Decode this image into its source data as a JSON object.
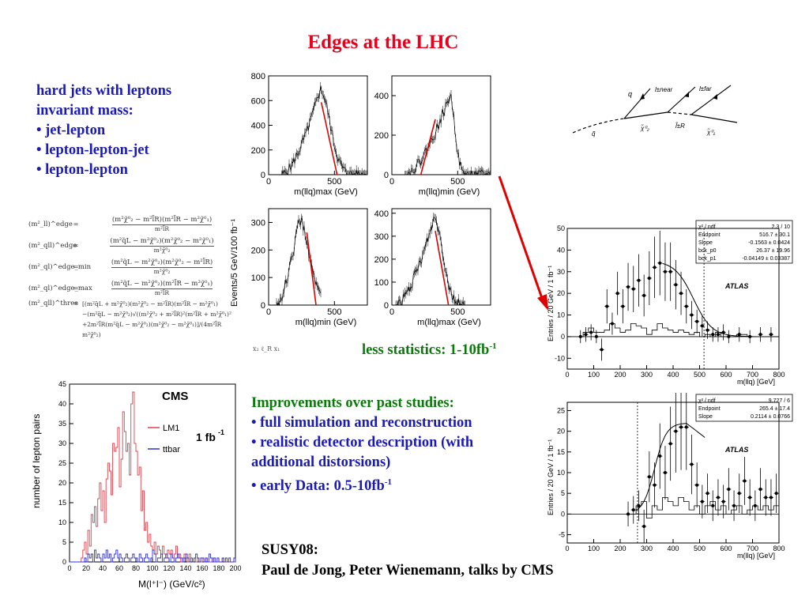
{
  "title": "Edges at the LHC",
  "intro": {
    "heading": [
      "hard jets with leptons",
      "invariant mass:"
    ],
    "bullets": [
      "• jet-lepton",
      "• lepton-lepton-jet",
      "• lepton-lepton"
    ]
  },
  "formulas": [
    {
      "lhs": "(m²_ll)^edge",
      "num": "(m²χ̃⁰₂ − m²l̃R)(m²l̃R − m²χ̃⁰₁)",
      "den": "m²l̃R"
    },
    {
      "lhs": "(m²_qll)^edge",
      "num": "(m²q̃L − m²χ̃⁰₂)(m²χ̃⁰₂ − m²χ̃⁰₁)",
      "den": "m²χ̃⁰₂"
    },
    {
      "lhs": "(m²_ql)^edge_min",
      "num": "(m²q̃L − m²χ̃⁰₂)(m²χ̃⁰₂ − m²l̃R)",
      "den": "m²χ̃⁰₂"
    },
    {
      "lhs": "(m²_ql)^edge_max",
      "num": "(m²q̃L − m²χ̃⁰₂)(m²l̃R − m²χ̃⁰₁)",
      "den": "m²l̃R"
    }
  ],
  "formula_thres": {
    "lhs": "(m²_qll)^thres",
    "lines": [
      "[(m²q̃L + m²χ̃⁰₂)(m²χ̃⁰₂ − m²l̃R)(m²l̃R − m²χ̃⁰₁)",
      "−(m²q̃L − m²χ̃⁰₂)√((m²χ̃⁰₂ + m²l̃R)²(m²l̃R + m²χ̃⁰₁)²",
      "+2m²l̃R(m²q̃L − m²χ̃⁰₂)(m²χ̃⁰₂ − m²χ̃⁰₁)]/(4m²l̃R m²χ̃⁰₂)"
    ]
  },
  "formula_footnote": "x₂   ℓ_R   x₁",
  "less_statistics": {
    "text": "less statistics: 1-10fb",
    "sup": "-1"
  },
  "improvements": {
    "heading": "Improvements over past studies:",
    "bullets": [
      "• full simulation and reconstruction",
      "• realistic detector description (with additional distorsions)"
    ],
    "last_bullet": {
      "text": "• early Data: 0.5-10fb",
      "sup": "-1"
    }
  },
  "reference": [
    "SUSY08:",
    "Paul de Jong, Peter Wienemann, talks by CMS"
  ],
  "feynman": {
    "labels": [
      "q",
      "l±near",
      "l±far",
      "q̃",
      "χ̃⁰₂",
      "l̃±R",
      "χ̃⁰₁"
    ]
  },
  "cms_plot": {
    "title": "CMS",
    "lumi": "1 fb",
    "lumi_sup": "-1",
    "ylabel": "number of lepton pairs",
    "xlabel": "M(l⁺l⁻) (GeV/c²)",
    "legend": [
      "LM1",
      "ttbar"
    ],
    "colors": {
      "LM1": "#e0404a",
      "ttbar": "#3030d0"
    }
  },
  "llq_grid": {
    "ylabel": "Events/5 GeV/100 fb⁻¹",
    "xlabels": [
      "m(llq)max (GeV)",
      "m(llq)min (GeV)",
      "m(llq)min (GeV)",
      "m(llq)max (GeV)"
    ]
  },
  "atlas_top": {
    "label": "ATLAS",
    "ylabel": "Entries / 20 GeV / 1 fb⁻¹",
    "xlabel": "m(llq) [GeV]",
    "stats": [
      [
        "χ² / ndf",
        "2.3 / 10"
      ],
      [
        "Endpoint",
        "516.7 ± 30.1"
      ],
      [
        "Slope",
        "-0.1563 ± 0.0424"
      ],
      [
        "bck_p0",
        "26.37 ± 19.96"
      ],
      [
        "bck_p1",
        "-0.04149 ± 0.03387"
      ]
    ]
  },
  "atlas_bottom": {
    "label": "ATLAS",
    "ylabel": "Entries / 20 GeV / 1 fb⁻¹",
    "xlabel": "m(llq) [GeV]",
    "stats": [
      [
        "χ² / ndf",
        "9.727 / 6"
      ],
      [
        "Endpoint",
        "265.4 ± 17.4"
      ],
      [
        "Slope",
        "0.2114 ± 0.0766"
      ]
    ]
  },
  "chart_data": [
    {
      "type": "bar",
      "title": "CMS",
      "xlabel": "M(l⁺l⁻) (GeV/c²)",
      "ylabel": "number of lepton pairs",
      "xlim": [
        0,
        200
      ],
      "ylim": [
        0,
        45
      ],
      "x_ticks": [
        0,
        20,
        40,
        60,
        80,
        100,
        120,
        140,
        160,
        180,
        200
      ],
      "y_ticks": [
        0,
        5,
        10,
        15,
        20,
        25,
        30,
        35,
        40,
        45
      ],
      "bin_width": 2,
      "series": [
        {
          "name": "LM1",
          "values": [
            0,
            0,
            0,
            0,
            0,
            0,
            0,
            1,
            3,
            5,
            2,
            8,
            4,
            12,
            10,
            14,
            9,
            16,
            20,
            13,
            18,
            10,
            21,
            25,
            23,
            17,
            30,
            28,
            29,
            34,
            19,
            26,
            38,
            33,
            28,
            30,
            22,
            40,
            43,
            30,
            28,
            22,
            24,
            13,
            18,
            8,
            10,
            5,
            7,
            4,
            3,
            5,
            2,
            4,
            3,
            2,
            4,
            2,
            1,
            3,
            2,
            3,
            1,
            2,
            4,
            1,
            2,
            0,
            1,
            2,
            1,
            0,
            2,
            1,
            0,
            1,
            0,
            1,
            0,
            0,
            1,
            0,
            1,
            0,
            0,
            0,
            1,
            0,
            0,
            0,
            0,
            0,
            1,
            0,
            0,
            0,
            0,
            0,
            0,
            0
          ]
        },
        {
          "name": "ttbar",
          "values": [
            0,
            0,
            0,
            0,
            0,
            0,
            0,
            0,
            0,
            1,
            0,
            2,
            1,
            2,
            0,
            3,
            1,
            2,
            1,
            0,
            2,
            1,
            3,
            1,
            2,
            0,
            1,
            2,
            3,
            1,
            2,
            1,
            0,
            1,
            2,
            1,
            0,
            1,
            2,
            1,
            1,
            0,
            2,
            1,
            0,
            1,
            2,
            1,
            0,
            1,
            3,
            2,
            0,
            1,
            1,
            2,
            0,
            1,
            2,
            1,
            0,
            2,
            1,
            0,
            1,
            2,
            1,
            1,
            0,
            1,
            2,
            1,
            0,
            1,
            0,
            1,
            2,
            1,
            0,
            1,
            1,
            0,
            1,
            0,
            2,
            1,
            0,
            1,
            0,
            1,
            0,
            0,
            1,
            0,
            1,
            0,
            1,
            0,
            0,
            1
          ]
        }
      ]
    },
    {
      "type": "line",
      "xlabel": "m(llq)max (GeV)",
      "ylabel": "Events/5 GeV/100 fb⁻¹",
      "xlim": [
        0,
        750
      ],
      "ylim": [
        0,
        800
      ],
      "x_ticks": [
        0,
        500
      ],
      "y_ticks": [
        0,
        200,
        400,
        600,
        800
      ],
      "peak_x": 390,
      "peak_y": 690,
      "fit_range": [
        400,
        520
      ],
      "start_x": 100,
      "end_x": 750
    },
    {
      "type": "line",
      "xlabel": "m(llq)min (GeV)",
      "ylabel": "Events/5 GeV/100 fb⁻¹",
      "xlim": [
        0,
        750
      ],
      "ylim": [
        0,
        500
      ],
      "x_ticks": [
        0,
        500
      ],
      "y_ticks": [
        0,
        200,
        400
      ],
      "peak_x": 440,
      "peak_y": 400,
      "fit_range": [
        220,
        330
      ],
      "start_x": 100,
      "end_x": 750
    },
    {
      "type": "line",
      "xlabel": "m(llq)min (GeV)",
      "ylabel": "Events/5 GeV/100 fb⁻¹",
      "xlim": [
        0,
        750
      ],
      "ylim": [
        0,
        350
      ],
      "x_ticks": [
        0,
        500
      ],
      "y_ticks": [
        0,
        100,
        200,
        300
      ],
      "peak_x": 230,
      "peak_y": 310,
      "fit_range": [
        290,
        360
      ],
      "start_x": 60,
      "end_x": 400
    },
    {
      "type": "line",
      "xlabel": "m(llq)max (GeV)",
      "ylabel": "Events/5 GeV/100 fb⁻¹",
      "xlim": [
        0,
        750
      ],
      "ylim": [
        0,
        420
      ],
      "x_ticks": [
        0,
        500
      ],
      "y_ticks": [
        0,
        100,
        200,
        300,
        400
      ],
      "peak_x": 320,
      "peak_y": 380,
      "fit_range": [
        330,
        430
      ],
      "start_x": 30,
      "end_x": 560
    },
    {
      "type": "scatter",
      "title": "ATLAS",
      "xlabel": "m(llq) [GeV]",
      "ylabel": "Entries / 20 GeV / 1 fb⁻¹",
      "xlim": [
        0,
        800
      ],
      "ylim": [
        -15,
        50
      ],
      "x_ticks": [
        0,
        100,
        200,
        300,
        400,
        500,
        600,
        700,
        800
      ],
      "y_ticks": [
        -10,
        0,
        10,
        20,
        30,
        40,
        50
      ],
      "endpoint": 516.7,
      "points": [
        [
          50,
          0
        ],
        [
          70,
          1
        ],
        [
          90,
          2
        ],
        [
          110,
          0
        ],
        [
          130,
          -6
        ],
        [
          150,
          14
        ],
        [
          170,
          6
        ],
        [
          190,
          20
        ],
        [
          210,
          14
        ],
        [
          230,
          23
        ],
        [
          250,
          22
        ],
        [
          270,
          26
        ],
        [
          290,
          19
        ],
        [
          310,
          27
        ],
        [
          330,
          32
        ],
        [
          350,
          34
        ],
        [
          370,
          30
        ],
        [
          390,
          30
        ],
        [
          410,
          24
        ],
        [
          430,
          20
        ],
        [
          450,
          14
        ],
        [
          470,
          10
        ],
        [
          490,
          7
        ],
        [
          510,
          5
        ],
        [
          530,
          3
        ],
        [
          550,
          1
        ],
        [
          570,
          1
        ],
        [
          590,
          2
        ],
        [
          610,
          0
        ],
        [
          650,
          1
        ],
        [
          690,
          0
        ],
        [
          730,
          1
        ],
        [
          770,
          1
        ]
      ],
      "background": [
        [
          40,
          0
        ],
        [
          60,
          2
        ],
        [
          80,
          4
        ],
        [
          100,
          2
        ],
        [
          120,
          2
        ],
        [
          140,
          3
        ],
        [
          160,
          6
        ],
        [
          180,
          4
        ],
        [
          200,
          2
        ],
        [
          220,
          3
        ],
        [
          240,
          6
        ],
        [
          260,
          5
        ],
        [
          280,
          4
        ],
        [
          300,
          1
        ],
        [
          320,
          3
        ],
        [
          340,
          6
        ],
        [
          360,
          4
        ],
        [
          380,
          3
        ],
        [
          400,
          2
        ],
        [
          420,
          3
        ],
        [
          440,
          2
        ],
        [
          460,
          1
        ],
        [
          480,
          2
        ],
        [
          500,
          0
        ],
        [
          520,
          1
        ],
        [
          540,
          0
        ],
        [
          560,
          2
        ],
        [
          580,
          0
        ],
        [
          600,
          0
        ],
        [
          640,
          1
        ],
        [
          680,
          0
        ],
        [
          800,
          0
        ]
      ]
    },
    {
      "type": "scatter",
      "title": "ATLAS",
      "xlabel": "m(llq) [GeV]",
      "ylabel": "Entries / 20 GeV / 1 fb⁻¹",
      "xlim": [
        0,
        800
      ],
      "ylim": [
        -7,
        27
      ],
      "x_ticks": [
        0,
        100,
        200,
        300,
        400,
        500,
        600,
        700,
        800
      ],
      "y_ticks": [
        -5,
        0,
        5,
        10,
        15,
        20,
        25
      ],
      "endpoint": 265.4,
      "points": [
        [
          230,
          0
        ],
        [
          250,
          1
        ],
        [
          270,
          2
        ],
        [
          290,
          -3
        ],
        [
          310,
          9
        ],
        [
          330,
          7
        ],
        [
          350,
          14
        ],
        [
          370,
          10
        ],
        [
          390,
          17
        ],
        [
          410,
          20
        ],
        [
          430,
          21
        ],
        [
          450,
          21
        ],
        [
          470,
          12
        ],
        [
          490,
          7
        ],
        [
          510,
          3
        ],
        [
          530,
          5
        ],
        [
          550,
          2
        ],
        [
          570,
          4
        ],
        [
          590,
          3
        ],
        [
          610,
          6
        ],
        [
          630,
          2
        ],
        [
          650,
          5
        ],
        [
          670,
          8
        ],
        [
          690,
          4
        ],
        [
          710,
          2
        ],
        [
          730,
          6
        ],
        [
          750,
          4
        ],
        [
          770,
          4
        ],
        [
          790,
          5
        ]
      ],
      "background": [
        [
          240,
          0
        ],
        [
          260,
          2
        ],
        [
          280,
          3
        ],
        [
          300,
          -1
        ],
        [
          320,
          2
        ],
        [
          340,
          1
        ],
        [
          360,
          4
        ],
        [
          380,
          3
        ],
        [
          400,
          2
        ],
        [
          420,
          4
        ],
        [
          440,
          3
        ],
        [
          460,
          1
        ],
        [
          480,
          2
        ],
        [
          500,
          0
        ],
        [
          520,
          2
        ],
        [
          540,
          3
        ],
        [
          560,
          1
        ],
        [
          580,
          2
        ],
        [
          600,
          0
        ],
        [
          620,
          1
        ],
        [
          640,
          2
        ],
        [
          660,
          0
        ],
        [
          680,
          1
        ],
        [
          700,
          2
        ],
        [
          720,
          1
        ],
        [
          740,
          2
        ],
        [
          760,
          1
        ],
        [
          780,
          2
        ],
        [
          800,
          1
        ]
      ]
    }
  ]
}
